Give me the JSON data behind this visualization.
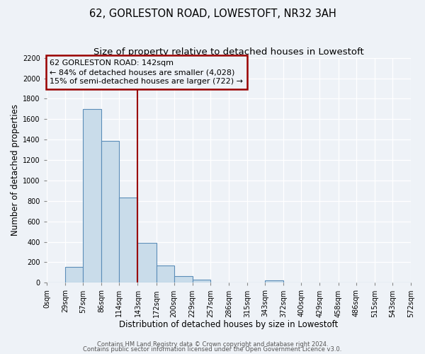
{
  "title": "62, GORLESTON ROAD, LOWESTOFT, NR32 3AH",
  "subtitle": "Size of property relative to detached houses in Lowestoft",
  "xlabel": "Distribution of detached houses by size in Lowestoft",
  "ylabel": "Number of detached properties",
  "bar_edges": [
    0,
    29,
    57,
    86,
    114,
    143,
    172,
    200,
    229,
    257,
    286,
    315,
    343,
    372,
    400,
    429,
    458,
    486,
    515,
    543,
    572
  ],
  "bar_heights": [
    0,
    155,
    1700,
    1390,
    830,
    390,
    165,
    65,
    30,
    5,
    5,
    0,
    20,
    0,
    0,
    0,
    0,
    0,
    0,
    0
  ],
  "bar_color": "#c9dcea",
  "bar_edge_color": "#5b8db8",
  "vline_x": 143,
  "vline_color": "#990000",
  "annotation_title": "62 GORLESTON ROAD: 142sqm",
  "annotation_line1": "← 84% of detached houses are smaller (4,028)",
  "annotation_line2": "15% of semi-detached houses are larger (722) →",
  "annotation_box_color": "#990000",
  "xlim": [
    0,
    572
  ],
  "ylim": [
    0,
    2200
  ],
  "xtick_labels": [
    "0sqm",
    "29sqm",
    "57sqm",
    "86sqm",
    "114sqm",
    "143sqm",
    "172sqm",
    "200sqm",
    "229sqm",
    "257sqm",
    "286sqm",
    "315sqm",
    "343sqm",
    "372sqm",
    "400sqm",
    "429sqm",
    "458sqm",
    "486sqm",
    "515sqm",
    "543sqm",
    "572sqm"
  ],
  "ytick_values": [
    0,
    200,
    400,
    600,
    800,
    1000,
    1200,
    1400,
    1600,
    1800,
    2000,
    2200
  ],
  "footnote1": "Contains HM Land Registry data © Crown copyright and database right 2024.",
  "footnote2": "Contains public sector information licensed under the Open Government Licence v3.0.",
  "bg_color": "#eef2f7",
  "grid_color": "#ffffff",
  "title_fontsize": 10.5,
  "subtitle_fontsize": 9.5,
  "axis_label_fontsize": 8.5,
  "tick_fontsize": 7,
  "footnote_fontsize": 6,
  "ann_fontsize": 8
}
